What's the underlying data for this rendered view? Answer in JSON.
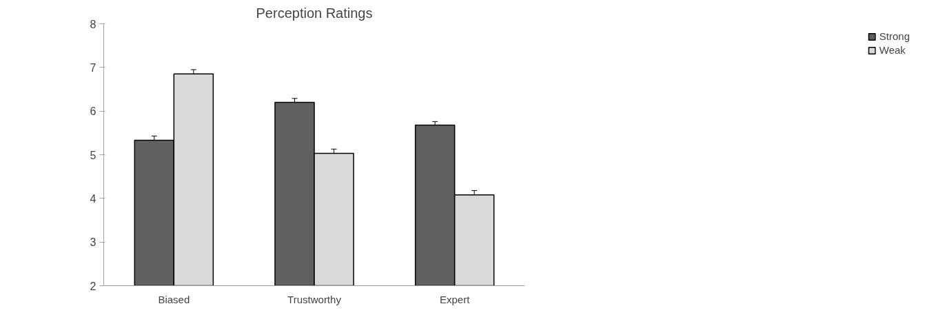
{
  "chart_data": {
    "type": "bar",
    "title": "Perception Ratings",
    "categories": [
      "Biased",
      "Trustworthy",
      "Expert"
    ],
    "series": [
      {
        "name": "Strong",
        "color": "#606060",
        "values": [
          5.33,
          6.2,
          5.68
        ],
        "errors": [
          0.1,
          0.09,
          0.08
        ]
      },
      {
        "name": "Weak",
        "color": "#d9d9d9",
        "values": [
          6.85,
          5.03,
          4.08
        ],
        "errors": [
          0.1,
          0.1,
          0.1
        ]
      }
    ],
    "ylim": [
      2,
      8
    ],
    "yticks": [
      2,
      3,
      4,
      5,
      6,
      7,
      8
    ],
    "grid": false,
    "legend": "right"
  }
}
